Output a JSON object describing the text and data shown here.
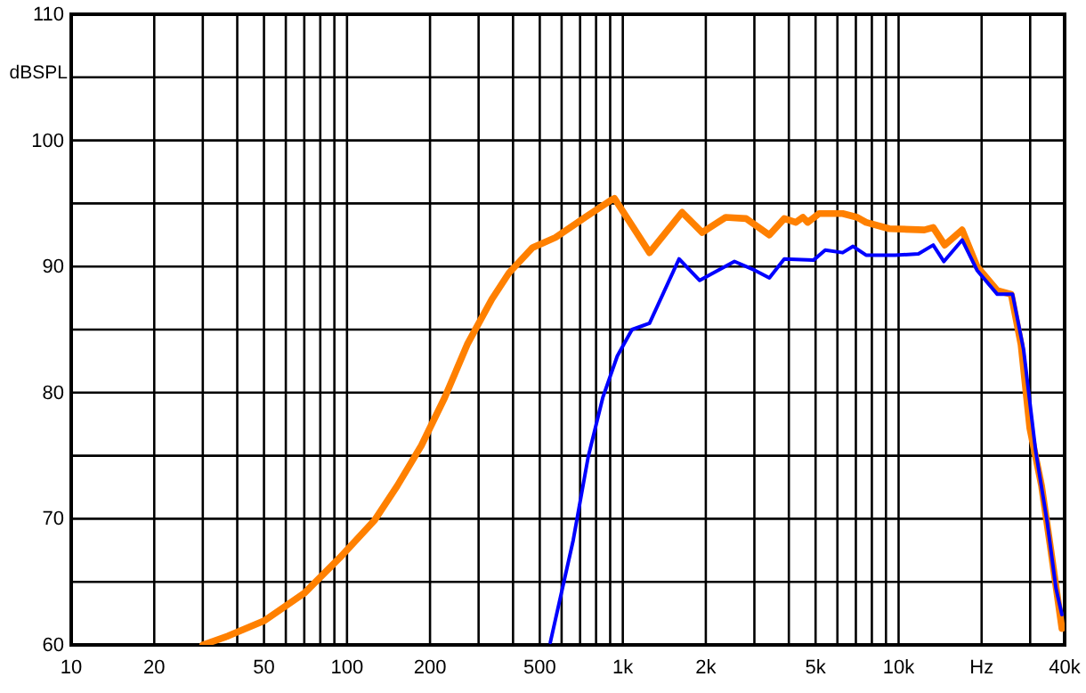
{
  "chart_data": {
    "type": "line",
    "ylabel": "dBSPL",
    "log": "x",
    "grid": true,
    "line_style": "solid",
    "marker": "none",
    "xlim": [
      10,
      40000
    ],
    "ylim": [
      60,
      110
    ],
    "xticks": [
      10,
      20,
      {
        "value": 30,
        "label": null
      },
      {
        "value": 40,
        "label": null
      },
      50,
      {
        "value": 60,
        "label": null
      },
      {
        "value": 70,
        "label": null
      },
      {
        "value": 80,
        "label": null
      },
      {
        "value": 90,
        "label": null
      },
      100,
      200,
      {
        "value": 300,
        "label": null
      },
      {
        "value": 400,
        "label": null
      },
      500,
      {
        "value": 600,
        "label": null
      },
      {
        "value": 700,
        "label": null
      },
      {
        "value": 800,
        "label": null
      },
      {
        "value": 900,
        "label": null
      },
      {
        "value": 1000,
        "label": "1k"
      },
      {
        "value": 2000,
        "label": "2k"
      },
      {
        "value": 3000,
        "label": null
      },
      {
        "value": 4000,
        "label": null
      },
      {
        "value": 5000,
        "label": "5k"
      },
      {
        "value": 6000,
        "label": null
      },
      {
        "value": 7000,
        "label": null
      },
      {
        "value": 8000,
        "label": null
      },
      {
        "value": 9000,
        "label": null
      },
      {
        "value": 10000,
        "label": "10k"
      },
      {
        "value": 20000,
        "label": "Hz"
      },
      {
        "value": 30000,
        "label": null
      },
      {
        "value": 40000,
        "label": "40k"
      }
    ],
    "yticks": [
      60,
      {
        "value": 65,
        "label": null
      },
      70,
      {
        "value": 75,
        "label": null
      },
      80,
      {
        "value": 85,
        "label": null
      },
      90,
      {
        "value": 95,
        "label": null
      },
      100,
      {
        "value": 105,
        "label": null
      },
      110
    ],
    "series": [
      {
        "color": "#ff8000",
        "x": [
          30,
          37,
          50,
          70,
          94,
          126,
          152,
          186,
          226,
          274,
          335,
          387,
          471,
          570,
          731,
          912,
          933,
          1250,
          1640,
          1940,
          2360,
          2800,
          3400,
          3850,
          4240,
          4500,
          4680,
          5150,
          6270,
          7080,
          7620,
          9250,
          12400,
          13350,
          14700,
          17000,
          19250,
          22800,
          25600,
          27800,
          29900,
          33000,
          35500,
          39100
        ],
        "values": [
          60,
          60.7,
          61.9,
          64.1,
          66.9,
          69.9,
          72.6,
          75.8,
          79.6,
          83.9,
          87.4,
          89.5,
          91.5,
          92.3,
          93.9,
          95.3,
          95.4,
          91.1,
          94.3,
          92.7,
          93.9,
          93.8,
          92.5,
          93.8,
          93.5,
          93.9,
          93.5,
          94.2,
          94.2,
          93.9,
          93.5,
          93,
          92.9,
          93.1,
          91.7,
          92.9,
          90,
          88.1,
          87.8,
          83.8,
          77.2,
          72.6,
          67.8,
          61.3
        ]
      },
      {
        "color": "#0000ff",
        "x": [
          546,
          661,
          749,
          846,
          955,
          1080,
          1250,
          1600,
          1900,
          2540,
          3010,
          3400,
          3850,
          4910,
          5420,
          6270,
          6840,
          7620,
          9720,
          11800,
          13350,
          14600,
          17000,
          19250,
          22800,
          25900,
          28400,
          31400,
          34600,
          37200,
          39100
        ],
        "values": [
          60.2,
          68.3,
          74.9,
          79.6,
          82.9,
          85,
          85.5,
          90.6,
          88.9,
          90.4,
          89.7,
          89.1,
          90.6,
          90.5,
          91.3,
          91.1,
          91.6,
          90.9,
          90.9,
          91,
          91.7,
          90.4,
          92.1,
          89.7,
          87.8,
          87.8,
          83.4,
          75.4,
          69.7,
          64.5,
          62.4
        ]
      }
    ]
  }
}
